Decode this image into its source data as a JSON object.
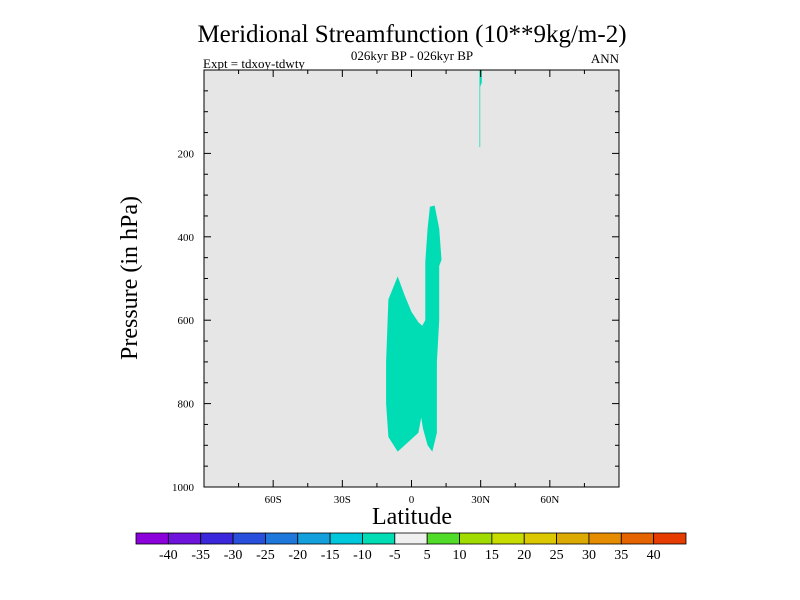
{
  "chart_data": {
    "type": "heatmap",
    "title": "Meridional Streamfunction (10**9kg/m-2)",
    "subtitle": "026kyr BP - 026kyr BP",
    "left_label": "Expt = tdxoy-tdwty",
    "right_label": "ANN",
    "xlabel": "Latitude",
    "ylabel": "Pressure (in hPa)",
    "xlim": [
      -90,
      90
    ],
    "ylim": [
      0,
      1000
    ],
    "x_ticks": [
      {
        "value": -60,
        "label": "60S"
      },
      {
        "value": -30,
        "label": "30S"
      },
      {
        "value": 0,
        "label": "0"
      },
      {
        "value": 30,
        "label": "30N"
      },
      {
        "value": 60,
        "label": "60N"
      }
    ],
    "y_ticks": [
      {
        "value": 200,
        "label": "200"
      },
      {
        "value": 400,
        "label": "400"
      },
      {
        "value": 600,
        "label": "600"
      },
      {
        "value": 800,
        "label": "800"
      },
      {
        "value": 1000,
        "label": "1000"
      }
    ],
    "background_color": "#e6e6e6",
    "regions": [
      {
        "name": "filled-region-1",
        "level_range": [
          -10,
          -5
        ],
        "color": "#00dcb4",
        "points": [
          [
            -6,
            495
          ],
          [
            -3,
            540
          ],
          [
            0,
            580
          ],
          [
            3,
            605
          ],
          [
            6,
            620
          ],
          [
            6.5,
            700
          ],
          [
            6,
            780
          ],
          [
            3,
            870
          ],
          [
            -6,
            915
          ],
          [
            -10,
            880
          ],
          [
            -11,
            800
          ],
          [
            -11,
            700
          ],
          [
            -10,
            550
          ]
        ]
      },
      {
        "name": "filled-region-2",
        "level_range": [
          -10,
          -5
        ],
        "color": "#00dcb4",
        "points": [
          [
            8,
            328
          ],
          [
            10,
            325
          ],
          [
            12,
            380
          ],
          [
            13,
            455
          ],
          [
            12,
            470
          ],
          [
            12,
            600
          ],
          [
            11,
            700
          ],
          [
            11,
            870
          ],
          [
            9,
            915
          ],
          [
            7,
            900
          ],
          [
            5,
            860
          ],
          [
            2,
            760
          ],
          [
            0,
            700
          ],
          [
            1,
            640
          ],
          [
            4,
            620
          ],
          [
            6,
            600
          ],
          [
            6,
            460
          ],
          [
            7,
            380
          ]
        ]
      },
      {
        "name": "filled-region-3",
        "level_range": [
          -10,
          -5
        ],
        "color": "#00dcb4",
        "points": [
          [
            29.5,
            0
          ],
          [
            30.5,
            0
          ],
          [
            30.5,
            30
          ],
          [
            29.8,
            40
          ],
          [
            29.8,
            185
          ],
          [
            29.5,
            185
          ]
        ]
      }
    ],
    "colorbar": {
      "labels": [
        "-40",
        "-35",
        "-30",
        "-25",
        "-20",
        "-15",
        "-10",
        "-5",
        "5",
        "10",
        "15",
        "20",
        "25",
        "30",
        "35",
        "40"
      ],
      "colors": [
        "#8c00dc",
        "#6e14dc",
        "#3c28dc",
        "#2850dc",
        "#1e78dc",
        "#14a0dc",
        "#00c8dc",
        "#00dcb4",
        "#f0f0f0",
        "#50dc28",
        "#a0dc00",
        "#c8dc00",
        "#dcc800",
        "#dcaa00",
        "#e68c00",
        "#e66400",
        "#e63c00"
      ]
    }
  }
}
